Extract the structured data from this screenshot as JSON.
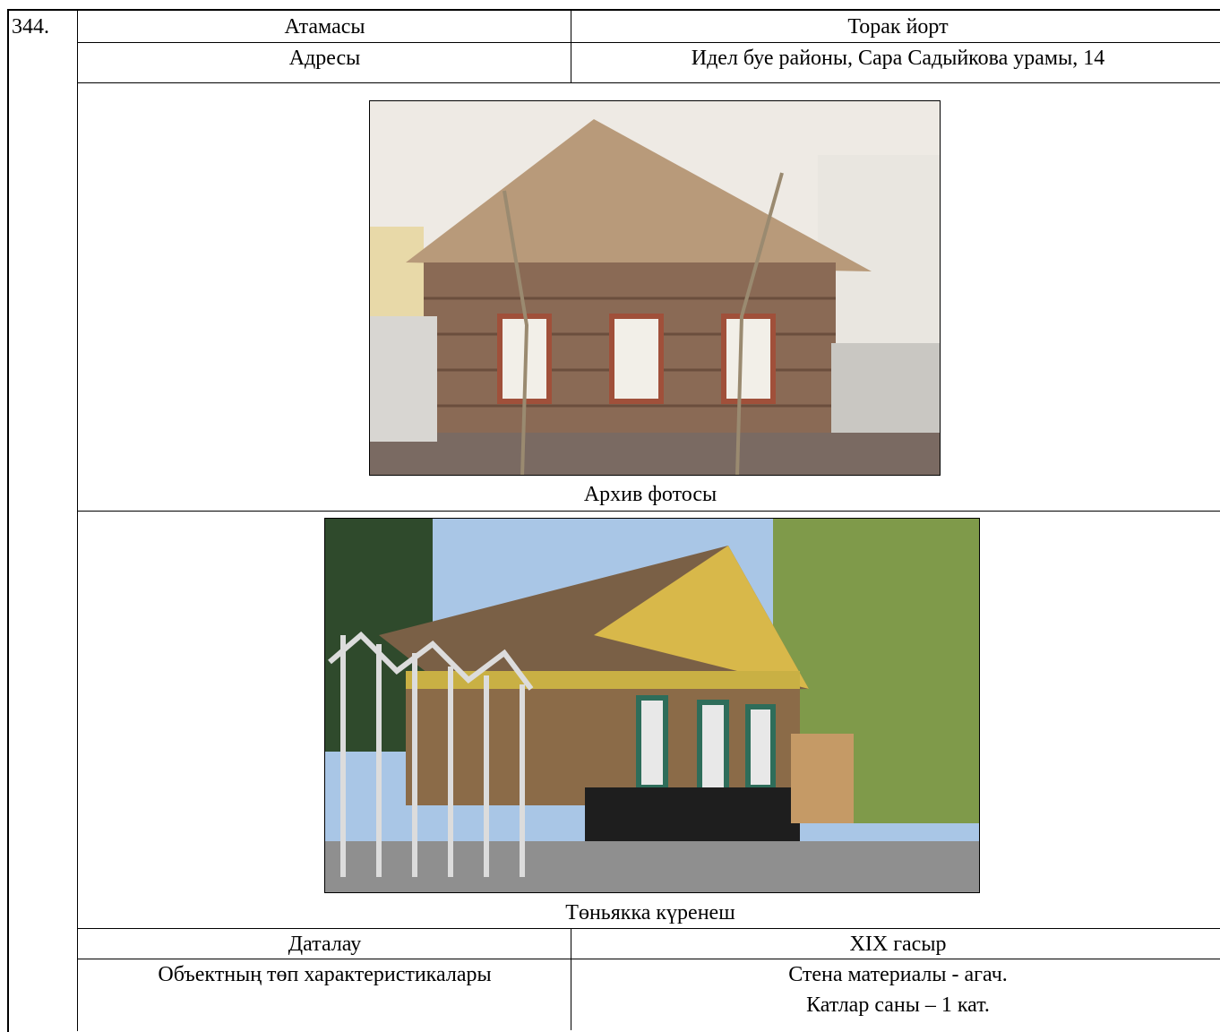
{
  "number": "344.",
  "table": {
    "rows": [
      [
        "Атамасы",
        "Торак йорт"
      ],
      [
        "Адресы",
        "Идел буе районы, Сара Садыйкова урамы, 14"
      ]
    ],
    "photos": [
      {
        "caption": "Архив фотосы"
      },
      {
        "caption": "Төньякка күренеш"
      }
    ],
    "details": [
      [
        "Даталау",
        "XIX гасыр"
      ],
      [
        "Объектның төп характеристикалары",
        [
          "Стена материалы - агач.",
          "Катлар саны – 1 кат."
        ]
      ]
    ]
  }
}
